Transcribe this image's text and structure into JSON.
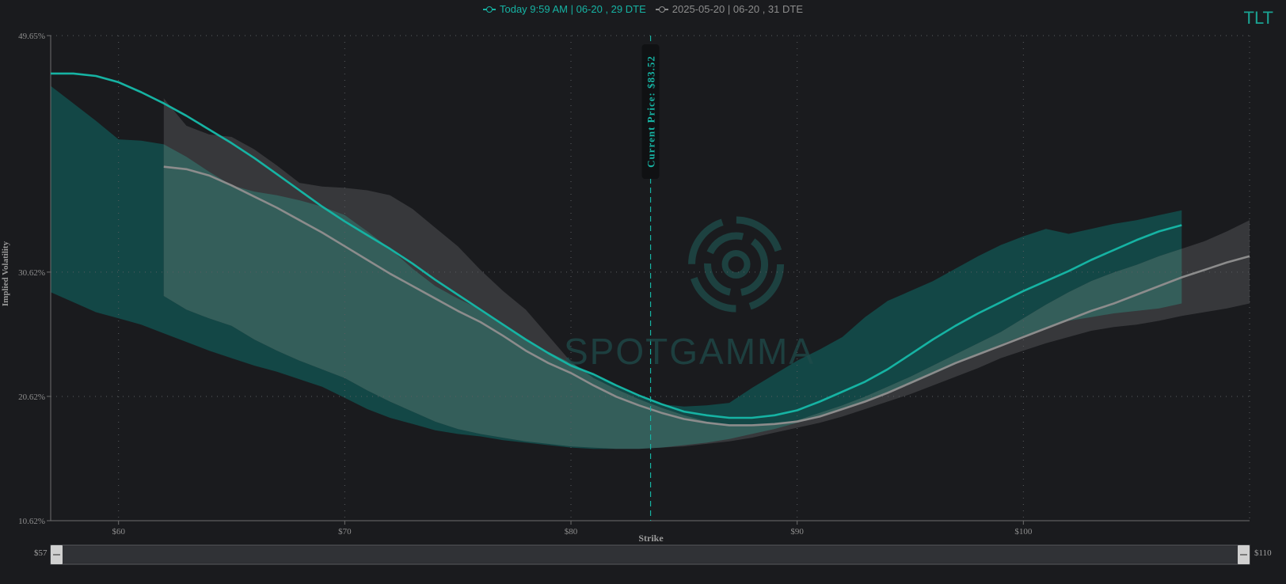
{
  "ticker": "TLT",
  "watermark_text": "SPOTGAMMA",
  "legend": [
    {
      "label": "Today 9:59 AM | 06-20 , 29 DTE",
      "color": "#16b3a3"
    },
    {
      "label": "2025-05-20 | 06-20 , 31 DTE",
      "color": "#8c8c8c"
    }
  ],
  "current_price_label": "Current Price: $83.52",
  "navigator": {
    "min_label": "$57",
    "max_label": "$110"
  },
  "colors": {
    "background": "#1a1b1e",
    "today_line": "#16b3a3",
    "today_band": "#124b4a",
    "prior_line": "#8c8c8c",
    "prior_band": "#3a3b3e",
    "overlap_band": "#35605c"
  },
  "chart_data": {
    "type": "line",
    "title": "",
    "xlabel": "Strike",
    "ylabel": "Implied Volatility",
    "xlim": [
      57,
      110
    ],
    "ylim": [
      10.62,
      49.65
    ],
    "x_ticks": [
      {
        "value": 60,
        "label": "$60"
      },
      {
        "value": 70,
        "label": "$70"
      },
      {
        "value": 80,
        "label": "$80"
      },
      {
        "value": 90,
        "label": "$90"
      },
      {
        "value": 100,
        "label": "$100"
      }
    ],
    "y_ticks": [
      {
        "value": 10.62,
        "label": "10.62%"
      },
      {
        "value": 20.62,
        "label": "20.62%"
      },
      {
        "value": 30.62,
        "label": "30.62%"
      },
      {
        "value": 49.65,
        "label": "49.65%"
      }
    ],
    "current_price": 83.52,
    "grid": true,
    "legend_position": "top-center",
    "series": [
      {
        "name": "Today 9:59 AM | 06-20 , 29 DTE",
        "x": [
          57,
          58,
          59,
          60,
          61,
          62,
          63,
          64,
          65,
          66,
          67,
          68,
          69,
          70,
          71,
          72,
          73,
          74,
          75,
          76,
          77,
          78,
          79,
          80,
          81,
          82,
          83,
          84,
          85,
          86,
          87,
          88,
          89,
          90,
          91,
          92,
          93,
          94,
          95,
          96,
          97,
          98,
          99,
          100,
          101,
          102,
          103,
          104,
          105,
          106,
          107
        ],
        "values": [
          46.6,
          46.6,
          46.4,
          45.9,
          45.1,
          44.2,
          43.2,
          42.1,
          41.0,
          39.8,
          38.5,
          37.2,
          35.9,
          34.7,
          33.6,
          32.5,
          31.3,
          30.0,
          28.8,
          27.6,
          26.4,
          25.2,
          24.1,
          23.1,
          22.4,
          21.5,
          20.7,
          20.0,
          19.4,
          19.1,
          18.9,
          18.9,
          19.1,
          19.5,
          20.2,
          21.0,
          21.8,
          22.8,
          24.0,
          25.2,
          26.3,
          27.3,
          28.2,
          29.1,
          29.9,
          30.7,
          31.6,
          32.4,
          33.2,
          33.9,
          34.4
        ]
      },
      {
        "name": "2025-05-20 | 06-20 , 31 DTE",
        "x": [
          62,
          63,
          64,
          65,
          66,
          67,
          68,
          69,
          70,
          71,
          72,
          73,
          74,
          75,
          76,
          77,
          78,
          79,
          80,
          81,
          82,
          83,
          84,
          85,
          86,
          87,
          88,
          89,
          90,
          91,
          92,
          93,
          94,
          95,
          96,
          97,
          98,
          99,
          100,
          101,
          102,
          103,
          104,
          105,
          106,
          107,
          108,
          109,
          110
        ],
        "values": [
          39.1,
          38.9,
          38.4,
          37.6,
          36.7,
          35.8,
          34.8,
          33.8,
          32.7,
          31.6,
          30.5,
          29.5,
          28.5,
          27.5,
          26.6,
          25.5,
          24.3,
          23.3,
          22.5,
          21.5,
          20.6,
          19.9,
          19.3,
          18.8,
          18.5,
          18.3,
          18.3,
          18.4,
          18.6,
          19.0,
          19.6,
          20.2,
          20.9,
          21.7,
          22.5,
          23.3,
          24.0,
          24.7,
          25.4,
          26.1,
          26.8,
          27.5,
          28.1,
          28.8,
          29.5,
          30.2,
          30.8,
          31.4,
          31.9
        ]
      }
    ],
    "bands": [
      {
        "name": "Today 9:59 AM | 06-20 , 29 DTE range",
        "x": [
          57,
          58,
          59,
          60,
          61,
          62,
          63,
          64,
          65,
          66,
          67,
          68,
          69,
          70,
          71,
          72,
          73,
          74,
          75,
          76,
          77,
          78,
          79,
          80,
          81,
          82,
          83,
          84,
          85,
          86,
          87,
          88,
          89,
          90,
          91,
          92,
          93,
          94,
          95,
          96,
          97,
          98,
          99,
          100,
          101,
          102,
          103,
          104,
          105,
          106,
          107
        ],
        "upper": [
          45.6,
          44.2,
          42.8,
          41.3,
          41.2,
          40.9,
          39.9,
          38.7,
          37.6,
          37.1,
          36.8,
          36.4,
          35.9,
          35.2,
          33.9,
          32.5,
          30.9,
          29.5,
          28.5,
          27.6,
          26.5,
          25.3,
          24.2,
          23.3,
          22.4,
          21.4,
          20.6,
          20.0,
          19.8,
          19.9,
          20.1,
          21.3,
          22.4,
          23.5,
          24.4,
          25.4,
          27.0,
          28.3,
          29.1,
          29.9,
          30.9,
          31.9,
          32.8,
          33.5,
          34.1,
          33.7,
          34.1,
          34.5,
          34.8,
          35.2,
          35.6
        ],
        "lower": [
          29.0,
          28.2,
          27.4,
          26.9,
          26.4,
          25.7,
          25.0,
          24.3,
          23.7,
          23.1,
          22.6,
          22.0,
          21.4,
          20.5,
          19.6,
          18.9,
          18.4,
          17.9,
          17.6,
          17.4,
          17.1,
          16.9,
          16.7,
          16.5,
          16.4,
          16.4,
          16.4,
          16.5,
          16.7,
          16.9,
          17.2,
          17.6,
          18.0,
          18.5,
          19.0,
          19.6,
          20.2,
          20.9,
          21.6,
          22.4,
          23.2,
          24.0,
          24.8,
          25.5,
          26.1,
          26.7,
          27.0,
          27.3,
          27.5,
          27.7,
          28.1
        ]
      },
      {
        "name": "2025-05-20 | 06-20 , 31 DTE range",
        "x": [
          62,
          63,
          64,
          65,
          66,
          67,
          68,
          69,
          70,
          71,
          72,
          73,
          74,
          75,
          76,
          77,
          78,
          79,
          80,
          81,
          82,
          83,
          84,
          85,
          86,
          87,
          88,
          89,
          90,
          91,
          92,
          93,
          94,
          95,
          96,
          97,
          98,
          99,
          100,
          101,
          102,
          103,
          104,
          105,
          106,
          107,
          108,
          109,
          110
        ],
        "upper": [
          44.6,
          42.4,
          41.7,
          41.5,
          40.5,
          39.2,
          37.8,
          37.5,
          37.4,
          37.2,
          36.8,
          35.7,
          34.2,
          32.7,
          30.8,
          29.1,
          27.6,
          25.5,
          23.4,
          22.1,
          21.2,
          20.4,
          19.7,
          19.1,
          18.6,
          18.3,
          18.2,
          18.4,
          18.7,
          19.3,
          19.9,
          20.6,
          21.4,
          22.2,
          23.1,
          24.0,
          24.9,
          25.8,
          26.9,
          28.0,
          29.0,
          29.9,
          30.6,
          31.2,
          31.9,
          32.5,
          33.1,
          33.9,
          34.8
        ],
        "lower": [
          28.7,
          27.6,
          26.9,
          26.3,
          25.2,
          24.3,
          23.5,
          22.8,
          22.1,
          21.1,
          20.2,
          19.4,
          18.6,
          18.0,
          17.6,
          17.3,
          17.0,
          16.8,
          16.6,
          16.5,
          16.4,
          16.4,
          16.5,
          16.6,
          16.8,
          17.0,
          17.3,
          17.7,
          18.1,
          18.5,
          19.0,
          19.6,
          20.2,
          20.8,
          21.5,
          22.2,
          22.9,
          23.7,
          24.3,
          24.9,
          25.4,
          25.9,
          26.2,
          26.4,
          26.7,
          27.1,
          27.4,
          27.7,
          28.1
        ]
      }
    ]
  }
}
